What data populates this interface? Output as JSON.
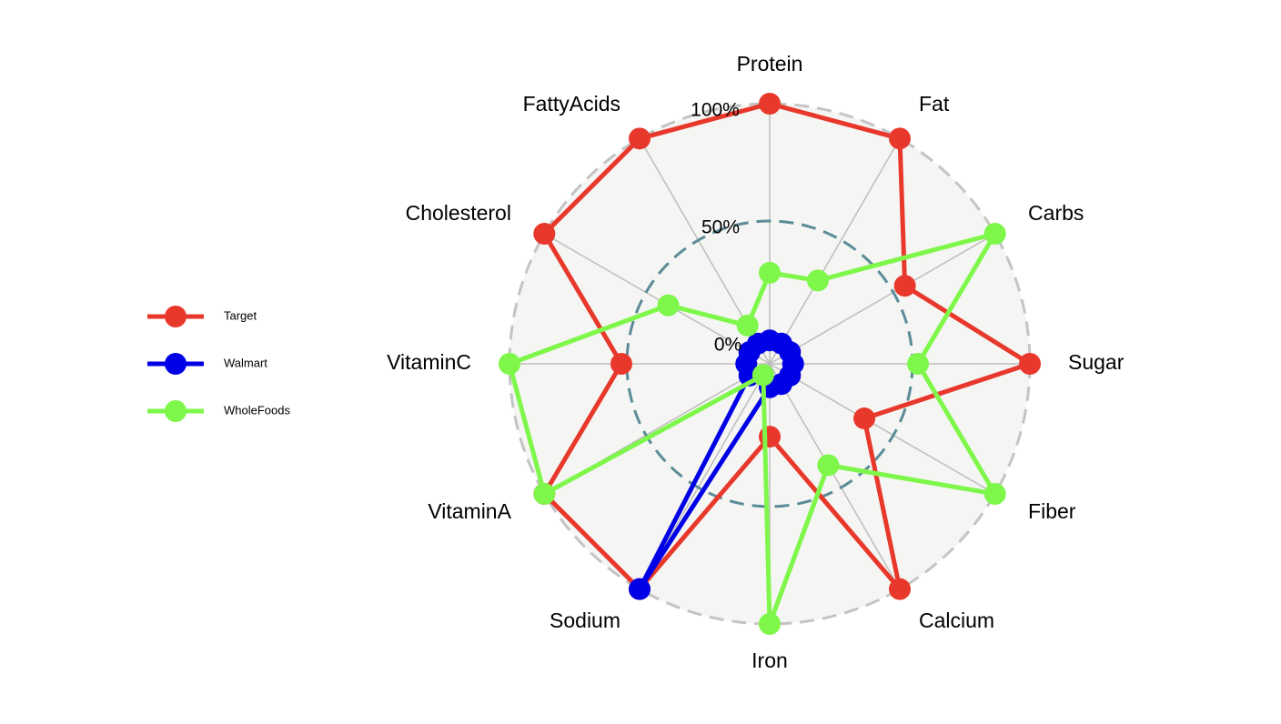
{
  "chart_data": {
    "type": "radar",
    "title": "",
    "categories": [
      "Protein",
      "Fat",
      "Carbs",
      "Sugar",
      "Fiber",
      "Calcium",
      "Iron",
      "Sodium",
      "VitaminA",
      "VitaminC",
      "Cholesterol",
      "FattyAcids"
    ],
    "radial_ticks": [
      {
        "value": 0,
        "label": "0%"
      },
      {
        "value": 50,
        "label": "50%"
      },
      {
        "value": 100,
        "label": "100%"
      }
    ],
    "rlim": [
      0,
      100
    ],
    "series": [
      {
        "name": "Target",
        "color": "#e8382b",
        "values": [
          100,
          100,
          60,
          100,
          42,
          100,
          28,
          100,
          100,
          57,
          100,
          100
        ]
      },
      {
        "name": "Walmart",
        "color": "#0000e6",
        "values": [
          9,
          9,
          9,
          9,
          9,
          9,
          9,
          100,
          9,
          9,
          9,
          9
        ]
      },
      {
        "name": "WholeFoods",
        "color": "#7ef74a",
        "values": [
          35,
          37,
          100,
          57,
          100,
          45,
          100,
          5,
          100,
          100,
          45,
          17
        ]
      }
    ],
    "legend_position": "left"
  }
}
